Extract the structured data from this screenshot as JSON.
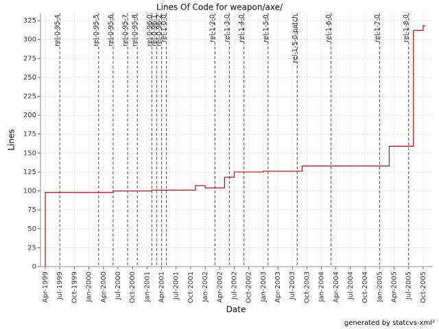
{
  "chart_data": {
    "type": "step-line",
    "title": "Lines Of Code for weapon/axe/",
    "x_label": "Date",
    "y_label": "Lines",
    "x": [
      "1999-04",
      "1999-04",
      "2000-06",
      "2001-02",
      "2001-11",
      "2002-01",
      "2002-05",
      "2002-07",
      "2003-01",
      "2003-09",
      "2005-03",
      "2005-08",
      "2005-10"
    ],
    "series": [
      {
        "name": "Lines",
        "color": "#cc0000",
        "values": [
          0,
          98,
          100,
          101,
          107,
          104,
          118,
          125,
          126,
          133,
          159,
          312,
          318
        ]
      }
    ],
    "xlim": [
      "1999-03",
      "2005-12"
    ],
    "xticks": [
      {
        "value": "1999-04",
        "label": "Apr-1999"
      },
      {
        "value": "1999-07",
        "label": "Jul-1999"
      },
      {
        "value": "1999-10",
        "label": "Oct-1999"
      },
      {
        "value": "2000-01",
        "label": "Jan-2000"
      },
      {
        "value": "2000-04",
        "label": "Apr-2000"
      },
      {
        "value": "2000-07",
        "label": "Jul-2000"
      },
      {
        "value": "2000-10",
        "label": "Oct-2000"
      },
      {
        "value": "2001-01",
        "label": "Jan-2001"
      },
      {
        "value": "2001-04",
        "label": "Apr-2001"
      },
      {
        "value": "2001-07",
        "label": "Jul-2001"
      },
      {
        "value": "2001-10",
        "label": "Oct-2001"
      },
      {
        "value": "2002-01",
        "label": "Jan-2002"
      },
      {
        "value": "2002-04",
        "label": "Apr-2002"
      },
      {
        "value": "2002-07",
        "label": "Jul-2002"
      },
      {
        "value": "2002-10",
        "label": "Oct-2002"
      },
      {
        "value": "2003-01",
        "label": "Jan-2003"
      },
      {
        "value": "2003-04",
        "label": "Apr-2003"
      },
      {
        "value": "2003-07",
        "label": "Jul-2003"
      },
      {
        "value": "2003-10",
        "label": "Oct-2003"
      },
      {
        "value": "2004-01",
        "label": "Jan-2004"
      },
      {
        "value": "2004-04",
        "label": "Apr-2004"
      },
      {
        "value": "2004-07",
        "label": "Jul-2004"
      },
      {
        "value": "2004-10",
        "label": "Oct-2004"
      },
      {
        "value": "2005-01",
        "label": "Jan-2005"
      },
      {
        "value": "2005-04",
        "label": "Apr-2005"
      },
      {
        "value": "2005-07",
        "label": "Jul-2005"
      },
      {
        "value": "2005-10",
        "label": "Oct-2005"
      }
    ],
    "ylim": [
      0,
      335
    ],
    "yticks": [
      0,
      25,
      50,
      75,
      100,
      125,
      150,
      175,
      200,
      225,
      250,
      275,
      300,
      325
    ],
    "grid": true,
    "markers": [
      {
        "label": "rel-0-95-4",
        "x": "1999-07"
      },
      {
        "label": "rel-0-95-5",
        "x": "2000-03"
      },
      {
        "label": "rel-0-95-6",
        "x": "2000-06"
      },
      {
        "label": "rel-0-95-7",
        "x": "2000-09"
      },
      {
        "label": "rel-0-95-8",
        "x": "2000-11"
      },
      {
        "label": "rel-0-96-0",
        "x": "2001-02"
      },
      {
        "label": "rel-0-96-1",
        "x": "2001-03"
      },
      {
        "label": "rel-0-96-2",
        "x": "2001-04"
      },
      {
        "label": "rel-1-0-0",
        "x": "2001-05"
      },
      {
        "label": "rel-1-2-0",
        "x": "2002-03"
      },
      {
        "label": "rel-1-3-0",
        "x": "2002-06"
      },
      {
        "label": "rel-1-4-0",
        "x": "2002-09"
      },
      {
        "label": "rel-1-5-0",
        "x": "2003-02"
      },
      {
        "label": "rel-1-5-0-patch",
        "x": "2003-08"
      },
      {
        "label": "rel-1-6-0",
        "x": "2004-03"
      },
      {
        "label": "rel-1-7-0",
        "x": "2005-01"
      },
      {
        "label": "rel-1-8-0",
        "x": "2005-07"
      }
    ]
  },
  "footer": "generated by statcvs-xml²"
}
